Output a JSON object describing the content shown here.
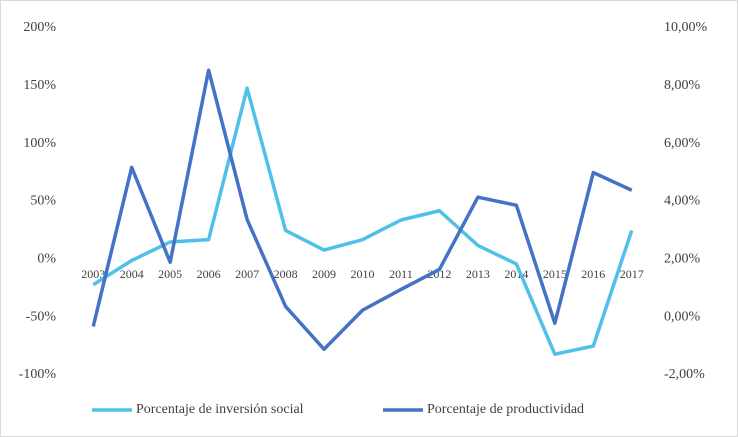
{
  "chart_data": {
    "type": "line",
    "categories": [
      "2003",
      "2004",
      "2005",
      "2006",
      "2007",
      "2008",
      "2009",
      "2010",
      "2011",
      "2012",
      "2013",
      "2014",
      "2015",
      "2016",
      "2017"
    ],
    "series": [
      {
        "name": "Porcentaje de inversión social",
        "color": "#4fc0e8",
        "values": [
          -22,
          -1,
          15,
          17,
          148,
          25,
          8,
          17,
          34,
          42,
          12,
          -4,
          -82,
          -75,
          25
        ]
      },
      {
        "name": "Porcentaje de productividad",
        "color": "#4472c4",
        "axis": "y2",
        "values": [
          -0.32,
          5.18,
          1.9,
          8.54,
          3.38,
          0.37,
          -1.11,
          0.24,
          0.96,
          1.65,
          4.15,
          3.87,
          -0.21,
          5.0,
          4.39
        ]
      }
    ],
    "ylim": [
      -100,
      200
    ],
    "yticks": [
      {
        "value": -100,
        "label": "-100%"
      },
      {
        "value": -50,
        "label": "-50%"
      },
      {
        "value": 0,
        "label": "0%"
      },
      {
        "value": 50,
        "label": "50%"
      },
      {
        "value": 100,
        "label": "100%"
      },
      {
        "value": 150,
        "label": "150%"
      },
      {
        "value": 200,
        "label": "200%"
      }
    ],
    "y2lim": [
      -2,
      10
    ],
    "y2ticks": [
      {
        "value": -2,
        "label": "-2,00%"
      },
      {
        "value": 0,
        "label": "0,00%"
      },
      {
        "value": 2,
        "label": "2,00%"
      },
      {
        "value": 4,
        "label": "4,00%"
      },
      {
        "value": 6,
        "label": "6,00%"
      },
      {
        "value": 8,
        "label": "8,00%"
      },
      {
        "value": 10,
        "label": "10,00%"
      }
    ],
    "grid": false,
    "legend": "bottom"
  }
}
